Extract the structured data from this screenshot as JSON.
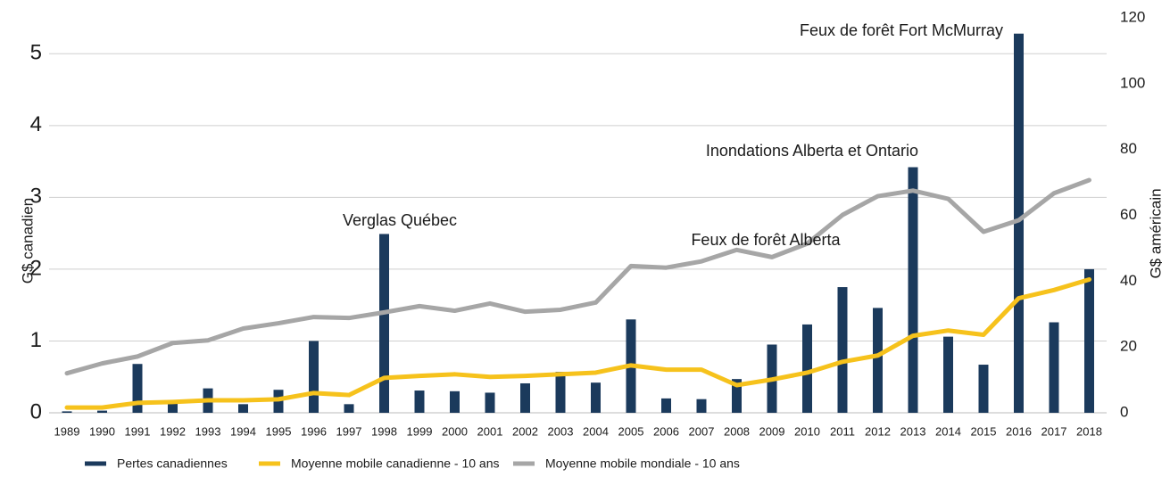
{
  "chart_data": {
    "type": "combo",
    "categories": [
      "1989",
      "1990",
      "1991",
      "1992",
      "1993",
      "1994",
      "1995",
      "1996",
      "1997",
      "1998",
      "1999",
      "2000",
      "2001",
      "2002",
      "2003",
      "2004",
      "2005",
      "2006",
      "2007",
      "2008",
      "2009",
      "2010",
      "2011",
      "2012",
      "2013",
      "2014",
      "2015",
      "2016",
      "2017",
      "2018"
    ],
    "ylabel": "G$ canadien",
    "y2label": "G$ américain",
    "ylim": [
      0,
      5.5
    ],
    "yticks": [
      0,
      1,
      2,
      3,
      4,
      5
    ],
    "y2lim": [
      0,
      120
    ],
    "y2ticks": [
      0,
      20,
      40,
      60,
      80,
      100,
      120
    ],
    "annotations": [
      "Verglas Québec",
      "Inondations Alberta et Ontario",
      "Feux de forêt Alberta",
      "Feux de forêt Fort McMurray"
    ],
    "series": [
      {
        "name": "Pertes canadiennes",
        "type": "bar",
        "color": "#1b3a5c",
        "values": [
          0.02,
          0.03,
          0.68,
          0.17,
          0.34,
          0.12,
          0.32,
          1.0,
          0.12,
          2.49,
          0.31,
          0.3,
          0.28,
          0.41,
          0.57,
          0.42,
          1.3,
          0.2,
          0.19,
          0.47,
          0.95,
          1.23,
          1.75,
          1.46,
          3.42,
          1.06,
          0.67,
          5.28,
          1.26,
          2.0
        ]
      },
      {
        "name": "Moyenne mobile canadienne - 10 ans",
        "type": "line",
        "axis": "y2",
        "color": "#f6c21c",
        "values": [
          1.6,
          1.6,
          3.0,
          3.3,
          3.8,
          3.8,
          4.1,
          6.0,
          5.4,
          10.6,
          11.2,
          11.7,
          10.9,
          11.2,
          11.7,
          12.2,
          14.4,
          13.1,
          13.1,
          8.4,
          10.1,
          12.2,
          15.5,
          17.4,
          23.4,
          25.0,
          23.7,
          34.8,
          37.3,
          40.5
        ]
      },
      {
        "name": "Moyenne mobile mondiale - 10 ans",
        "type": "line",
        "axis": "y2",
        "color": "#a6a6a6",
        "values": [
          12.0,
          15.0,
          17.1,
          21.2,
          22.0,
          25.6,
          27.2,
          29.1,
          28.8,
          30.5,
          32.4,
          31.0,
          33.2,
          30.7,
          31.3,
          33.5,
          44.6,
          44.1,
          46.0,
          49.5,
          47.3,
          51.4,
          60.1,
          65.8,
          67.5,
          65.0,
          55.0,
          58.5,
          66.7,
          70.7
        ]
      }
    ]
  }
}
